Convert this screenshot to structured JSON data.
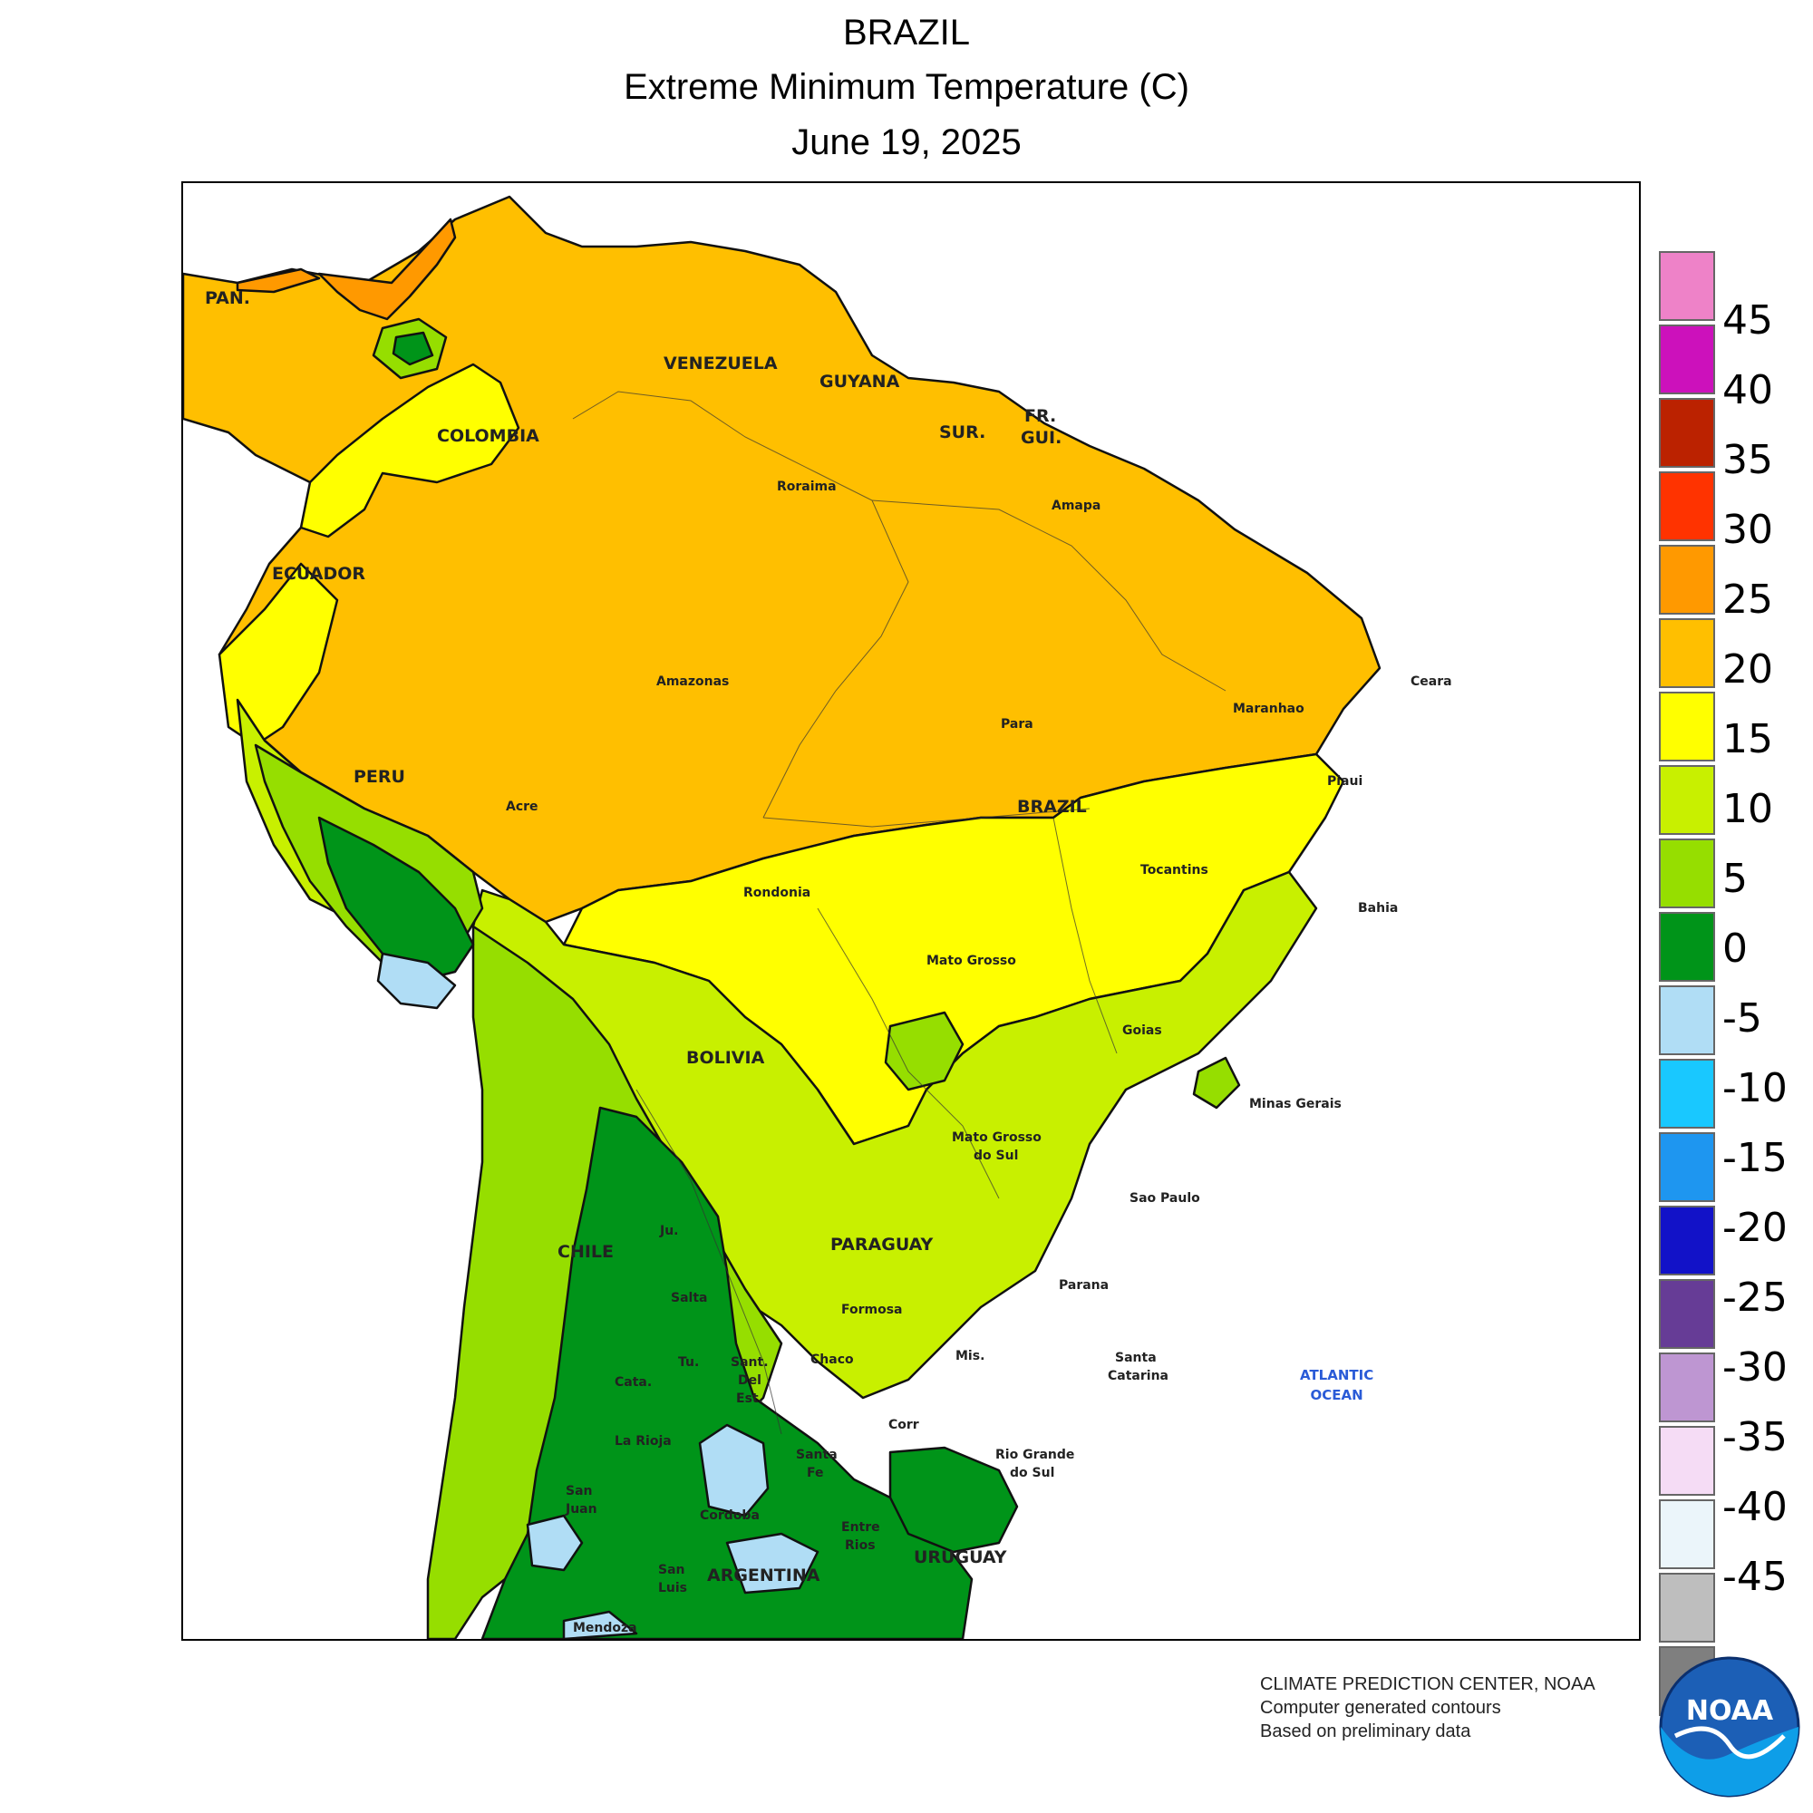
{
  "header": {
    "line1": "BRAZIL",
    "line2": "Extreme Minimum Temperature (C)",
    "line3": "June 19, 2025"
  },
  "legend": {
    "colors": [
      "#ee82c8",
      "#cc11bb",
      "#bb2200",
      "#ff3300",
      "#ff9900",
      "#ffbf00",
      "#ffff00",
      "#c8f000",
      "#96de00",
      "#009419",
      "#b0ddf5",
      "#19c8ff",
      "#1e96f0",
      "#1212c8",
      "#663c96",
      "#be96d2",
      "#f5dcf5",
      "#ebf5fa",
      "#bebebe",
      "#7f7f7f"
    ],
    "ticks": [
      "45",
      "40",
      "35",
      "30",
      "25",
      "20",
      "15",
      "10",
      "5",
      "0",
      "-5",
      "-10",
      "-15",
      "-20",
      "-25",
      "-30",
      "-35",
      "-40",
      "-45"
    ]
  },
  "map": {
    "country_labels": [
      "PAN.",
      "VENEZUELA",
      "GUYANA",
      "SUR.",
      "FR.",
      "GUI.",
      "COLOMBIA",
      "ECUADOR",
      "PERU",
      "BRAZIL",
      "BOLIVIA",
      "CHILE",
      "PARAGUAY",
      "ARGENTINA",
      "URUGUAY"
    ],
    "state_labels": [
      "Roraima",
      "Amapa",
      "Amazonas",
      "Para",
      "Maranhao",
      "Ceara",
      "Piaui",
      "Acre",
      "Rondonia",
      "Tocantins",
      "Bahia",
      "Mato Grosso",
      "Goias",
      "Minas Gerais",
      "Mato Grosso",
      "do Sul",
      "Sao Paulo",
      "Parana",
      "Santa",
      "Catarina",
      "Rio Grande",
      "do Sul",
      "Mis.",
      "Corr",
      "Formosa",
      "Chaco",
      "Ju.",
      "Salta",
      "Tu.",
      "Cata.",
      "Sant.",
      "Del",
      "Est.",
      "La Rioja",
      "Santa",
      "Fe",
      "San",
      "Juan",
      "Cordoba",
      "Entre",
      "Rios",
      "San",
      "Luis",
      "Mendoza"
    ],
    "ocean_label": [
      "ATLANTIC",
      "OCEAN"
    ]
  },
  "credits": {
    "line1": "CLIMATE PREDICTION CENTER, NOAA",
    "line2": "Computer generated contours",
    "line3": "Based on preliminary data",
    "logo_text": "NOAA"
  }
}
